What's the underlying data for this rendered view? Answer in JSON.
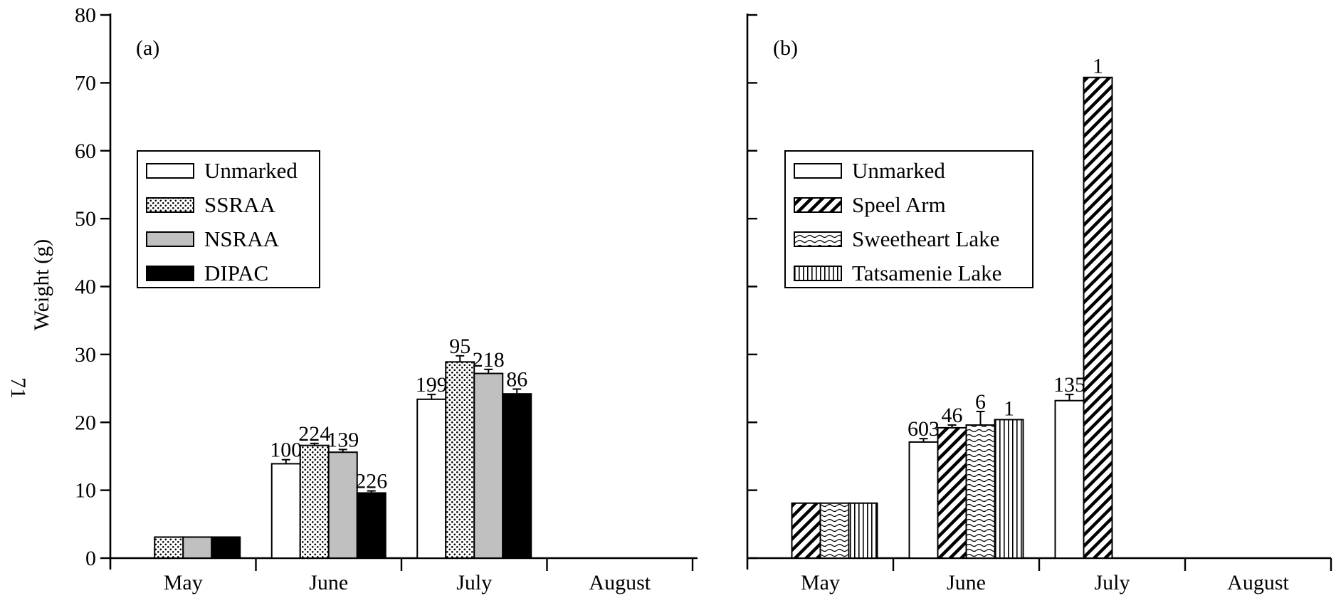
{
  "page_number": "71",
  "chart_data": [
    {
      "type": "bar",
      "panel_label": "(a)",
      "ylabel": "Weight (g)",
      "ylim": [
        0,
        80
      ],
      "yticks": [
        0,
        10,
        20,
        30,
        40,
        50,
        60,
        70,
        80
      ],
      "yticks_text": [
        "0",
        "10",
        "20",
        "30",
        "40",
        "50",
        "60",
        "70",
        "80"
      ],
      "categories": [
        "May",
        "June",
        "July",
        "August"
      ],
      "legend_position": "upper-left",
      "series": [
        {
          "name": "Unmarked",
          "pattern": "white",
          "values": [
            null,
            13.9,
            23.4,
            null
          ],
          "errors": [
            0,
            0.6,
            0.7,
            0
          ],
          "labels": [
            "",
            "100",
            "199",
            ""
          ]
        },
        {
          "name": "SSRAA",
          "pattern": "dots",
          "values": [
            3.1,
            16.6,
            28.9,
            null
          ],
          "errors": [
            0,
            0.3,
            0.9,
            0
          ],
          "labels": [
            "",
            "224",
            "95",
            ""
          ]
        },
        {
          "name": "NSRAA",
          "pattern": "gray",
          "values": [
            3.1,
            15.6,
            27.2,
            null
          ],
          "errors": [
            0,
            0.4,
            0.6,
            0
          ],
          "labels": [
            "",
            "139",
            "218",
            ""
          ]
        },
        {
          "name": "DIPAC",
          "pattern": "black",
          "values": [
            3.1,
            9.6,
            24.2,
            null
          ],
          "errors": [
            0,
            0.3,
            0.7,
            0
          ],
          "labels": [
            "",
            "226",
            "86",
            ""
          ]
        }
      ]
    },
    {
      "type": "bar",
      "panel_label": "(b)",
      "ylim": [
        0,
        80
      ],
      "categories": [
        "May",
        "June",
        "July",
        "August"
      ],
      "legend_position": "upper-left",
      "series": [
        {
          "name": "Unmarked",
          "pattern": "white",
          "values": [
            null,
            17.1,
            23.2,
            null
          ],
          "errors": [
            0,
            0.5,
            0.9,
            0
          ],
          "labels": [
            "",
            "603",
            "135",
            ""
          ]
        },
        {
          "name": "Speel Arm",
          "pattern": "diagonal",
          "values": [
            8.1,
            19.2,
            70.8,
            null
          ],
          "errors": [
            0,
            0.4,
            0,
            0
          ],
          "labels": [
            "",
            "46",
            "1",
            ""
          ]
        },
        {
          "name": "Sweetheart Lake",
          "pattern": "wavy",
          "values": [
            8.1,
            19.6,
            null,
            null
          ],
          "errors": [
            0,
            2.0,
            0,
            0
          ],
          "labels": [
            "",
            "6",
            "",
            ""
          ]
        },
        {
          "name": "Tatsamenie Lake",
          "pattern": "vertical",
          "values": [
            8.1,
            20.4,
            null,
            null
          ],
          "errors": [
            0,
            0,
            0,
            0
          ],
          "labels": [
            "",
            "1",
            "",
            ""
          ]
        }
      ]
    }
  ]
}
